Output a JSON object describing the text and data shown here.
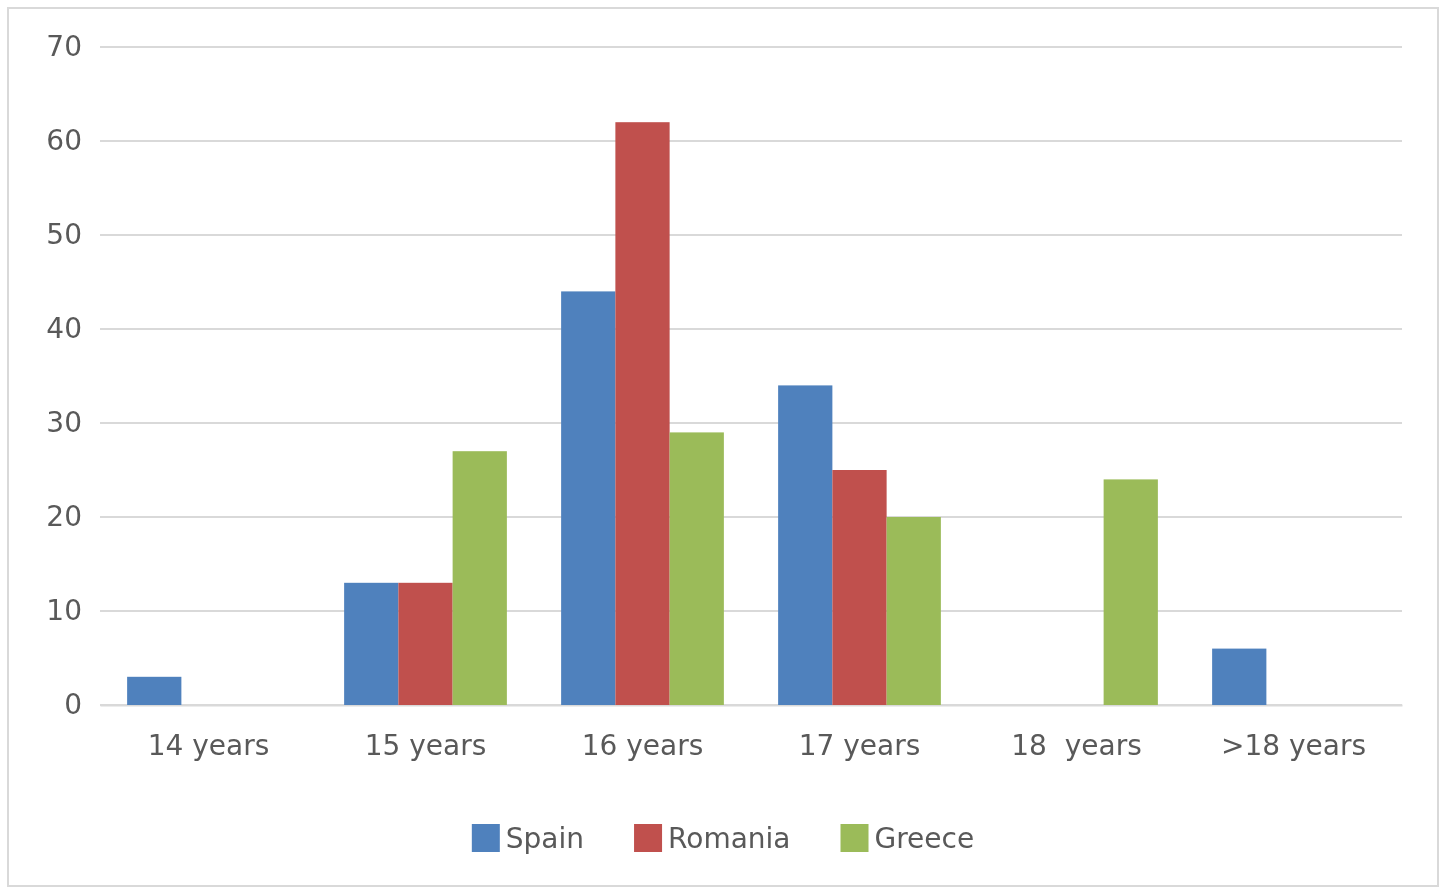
{
  "chart_data": {
    "type": "bar",
    "categories": [
      "14 years",
      "15 years",
      "16 years",
      "17 years",
      "18  years",
      ">18 years"
    ],
    "series": [
      {
        "name": "Spain",
        "color": "#4f81bd",
        "values": [
          3,
          13,
          44,
          34,
          null,
          6
        ]
      },
      {
        "name": "Romania",
        "color": "#c0504d",
        "values": [
          null,
          13,
          62,
          25,
          null,
          null
        ]
      },
      {
        "name": "Greece",
        "color": "#9bbb59",
        "values": [
          null,
          27,
          29,
          20,
          24,
          null
        ]
      }
    ],
    "ylim": [
      0,
      70
    ],
    "yticks": [
      0,
      10,
      20,
      30,
      40,
      50,
      60,
      70
    ],
    "grid": "y",
    "legend": "bottom"
  }
}
